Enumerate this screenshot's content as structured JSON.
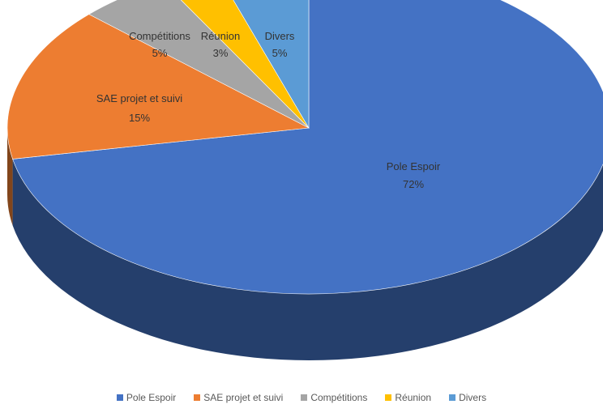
{
  "chart_data": {
    "type": "pie",
    "style": "3d",
    "labels": [
      "Pole Espoir",
      "SAE projet et suivi",
      "Compétitions",
      "Réunion",
      "Divers"
    ],
    "values": [
      72,
      15,
      5,
      3,
      5
    ],
    "percent_labels": [
      "72%",
      "15%",
      "5%",
      "3%",
      "5%"
    ],
    "colors": [
      "#4472C4",
      "#ED7D31",
      "#A5A5A5",
      "#FFC000",
      "#5B9BD5"
    ],
    "legend_position": "bottom"
  }
}
